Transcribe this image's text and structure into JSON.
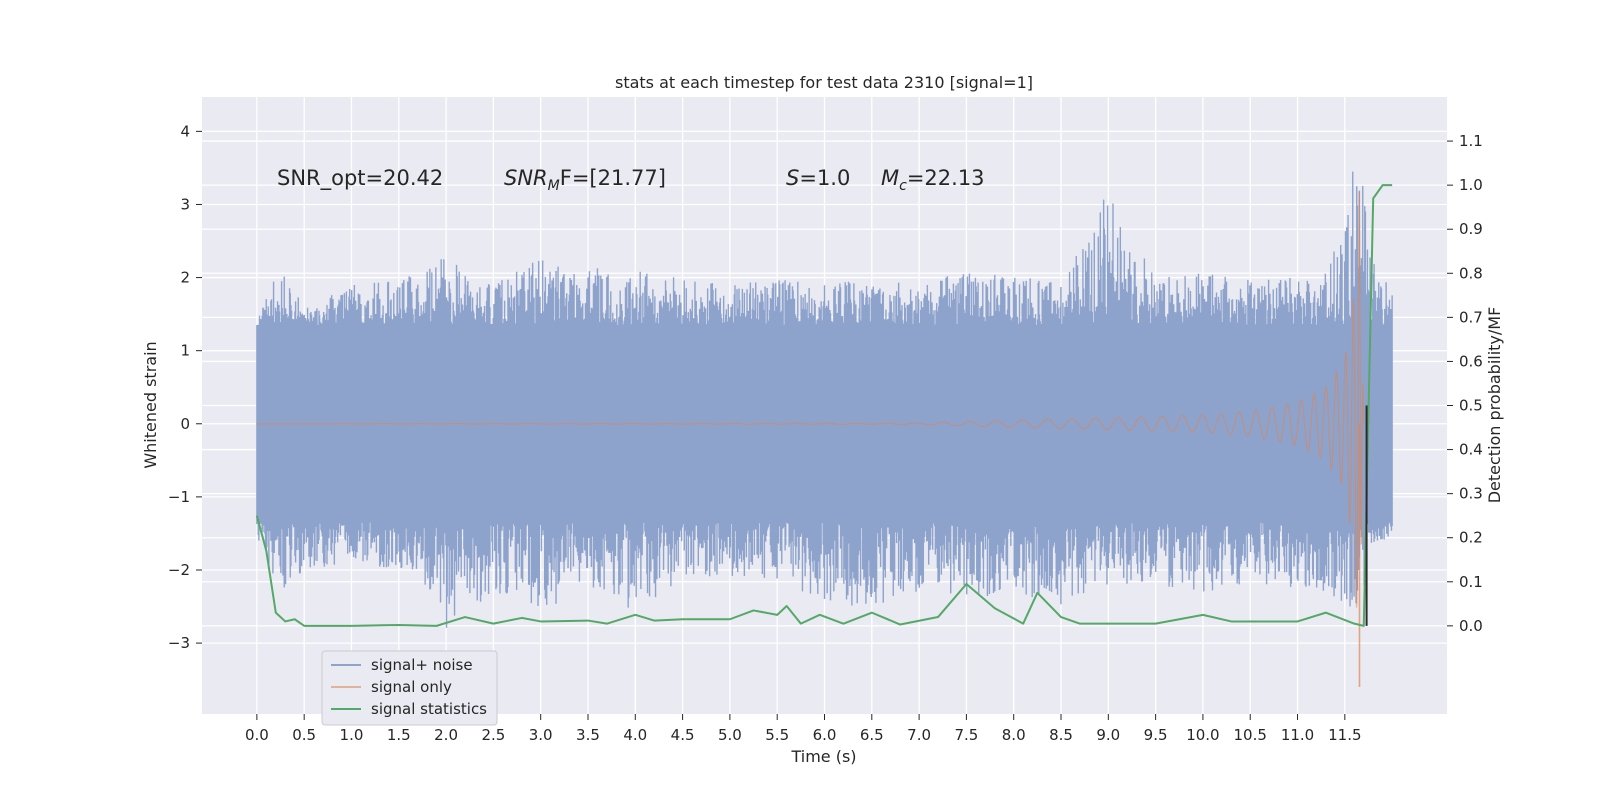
{
  "chart_data": {
    "type": "line",
    "title": "stats at each timestep for test data 2310 [signal=1]",
    "xlabel": "Time (s)",
    "ylabel_left": "Whitened strain",
    "ylabel_right": "Detection probability/MF",
    "xlim": [
      -0.58,
      12.58
    ],
    "ylim_left": [
      -3.97,
      4.47
    ],
    "ylim_right": [
      -0.2,
      1.2
    ],
    "x_ticks": [
      "0.0",
      "0.5",
      "1.0",
      "1.5",
      "2.0",
      "2.5",
      "3.0",
      "3.5",
      "4.0",
      "4.5",
      "5.0",
      "5.5",
      "6.0",
      "6.5",
      "7.0",
      "7.5",
      "8.0",
      "8.5",
      "9.0",
      "9.5",
      "10.0",
      "10.5",
      "11.0",
      "11.5"
    ],
    "y_ticks_left": [
      "−3",
      "−2",
      "−1",
      "0",
      "1",
      "2",
      "3",
      "4"
    ],
    "y_ticks_right": [
      "0.0",
      "0.1",
      "0.2",
      "0.3",
      "0.4",
      "0.5",
      "0.6",
      "0.7",
      "0.8",
      "0.9",
      "1.0",
      "1.1"
    ],
    "grid": true,
    "legend_placement": "lower-left",
    "annotations": {
      "snr_opt": "SNR_opt=20.42",
      "snr_mf_sym": "SNR",
      "snr_mf_sub": "M",
      "snr_mf_rest": "F=[21.77]",
      "s_sym": "S",
      "s_rest": "=1.0",
      "mc_sym": "M",
      "mc_sub": "c",
      "mc_rest": "=22.13"
    },
    "series": [
      {
        "name": "signal+ noise",
        "color": "#8ea3cc",
        "x": [
          0.0,
          0.25,
          0.5,
          1.0,
          1.5,
          2.0,
          2.5,
          3.0,
          3.5,
          4.0,
          4.5,
          5.0,
          5.5,
          6.0,
          6.5,
          7.0,
          7.5,
          8.0,
          8.5,
          9.0,
          9.5,
          10.0,
          10.5,
          11.0,
          11.3,
          11.5,
          11.65,
          11.75,
          12.0
        ],
        "upper": [
          1.4,
          2.2,
          1.6,
          1.9,
          2.0,
          2.3,
          1.9,
          2.3,
          2.2,
          2.1,
          2.0,
          1.9,
          2.0,
          1.9,
          2.0,
          1.9,
          2.1,
          2.0,
          2.0,
          3.2,
          2.0,
          2.1,
          2.0,
          2.0,
          2.1,
          2.7,
          4.1,
          2.5,
          1.8
        ],
        "lower": [
          -1.6,
          -2.3,
          -2.0,
          -1.9,
          -2.0,
          -2.8,
          -2.3,
          -2.6,
          -2.2,
          -2.6,
          -2.1,
          -2.1,
          -2.2,
          -2.5,
          -2.5,
          -2.3,
          -2.4,
          -2.3,
          -2.5,
          -2.2,
          -2.2,
          -2.3,
          -2.2,
          -2.3,
          -2.3,
          -2.5,
          -2.7,
          -1.8,
          -1.5
        ],
        "core_half_width": 1.35
      },
      {
        "name": "signal only",
        "color": "#dd8452",
        "x": [
          0.0,
          7.0,
          8.0,
          9.0,
          10.0,
          10.5,
          11.0,
          11.3,
          11.5,
          11.6,
          11.65,
          11.7
        ],
        "amplitude": [
          0.0,
          0.01,
          0.05,
          0.08,
          0.12,
          0.17,
          0.3,
          0.5,
          0.9,
          1.8,
          3.3,
          0.0
        ]
      },
      {
        "name": "signal statistics",
        "color": "#55a868",
        "x": [
          0.0,
          0.1,
          0.2,
          0.3,
          0.4,
          0.5,
          1.0,
          1.5,
          1.9,
          2.2,
          2.5,
          2.8,
          3.0,
          3.5,
          3.7,
          4.0,
          4.2,
          4.5,
          5.0,
          5.25,
          5.5,
          5.6,
          5.75,
          5.95,
          6.2,
          6.5,
          6.8,
          7.2,
          7.5,
          7.8,
          8.1,
          8.25,
          8.5,
          8.7,
          9.0,
          9.5,
          10.0,
          10.3,
          10.6,
          11.0,
          11.3,
          11.6,
          11.7,
          11.8,
          11.9,
          12.0
        ],
        "values": [
          0.25,
          0.17,
          0.03,
          0.01,
          0.015,
          0.0,
          0.0,
          0.002,
          0.0,
          0.02,
          0.005,
          0.018,
          0.01,
          0.012,
          0.005,
          0.025,
          0.012,
          0.015,
          0.015,
          0.035,
          0.025,
          0.045,
          0.005,
          0.025,
          0.005,
          0.03,
          0.003,
          0.02,
          0.095,
          0.04,
          0.005,
          0.075,
          0.02,
          0.005,
          0.005,
          0.005,
          0.025,
          0.01,
          0.01,
          0.01,
          0.03,
          0.005,
          0.0,
          0.97,
          1.0,
          1.0
        ]
      }
    ]
  }
}
